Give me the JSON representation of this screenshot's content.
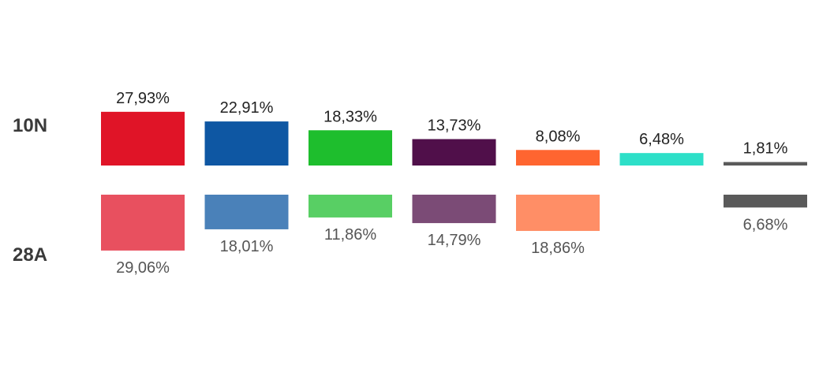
{
  "chart_data": {
    "type": "bar",
    "orientation": "diverging-vertical",
    "rows": [
      "10N",
      "28A"
    ],
    "ylim": [
      0,
      35
    ],
    "series": [
      {
        "row": "10N",
        "values": [
          27.93,
          22.91,
          18.33,
          13.73,
          8.08,
          6.48,
          1.81
        ],
        "labels": [
          "27,93%",
          "22,91%",
          "18,33%",
          "13,73%",
          "8,08%",
          "6,48%",
          "1,81%"
        ],
        "colors": [
          "#e01427",
          "#0e57a3",
          "#1ebe2d",
          "#500f4a",
          "#ff6530",
          "#2ddfc8",
          "#5a5a5a"
        ]
      },
      {
        "row": "28A",
        "values": [
          29.06,
          18.01,
          11.86,
          14.79,
          18.86,
          null,
          6.68
        ],
        "labels": [
          "29,06%",
          "18,01%",
          "11,86%",
          "14,79%",
          "18,86%",
          "",
          "6,68%"
        ],
        "colors": [
          "#e8505f",
          "#4a81b9",
          "#58cf64",
          "#7b4b76",
          "#ff8e66",
          "#6ce8d8",
          "#5a5a5a"
        ]
      }
    ],
    "label_colors": {
      "top": "#222222",
      "bottom": "#555555"
    }
  }
}
